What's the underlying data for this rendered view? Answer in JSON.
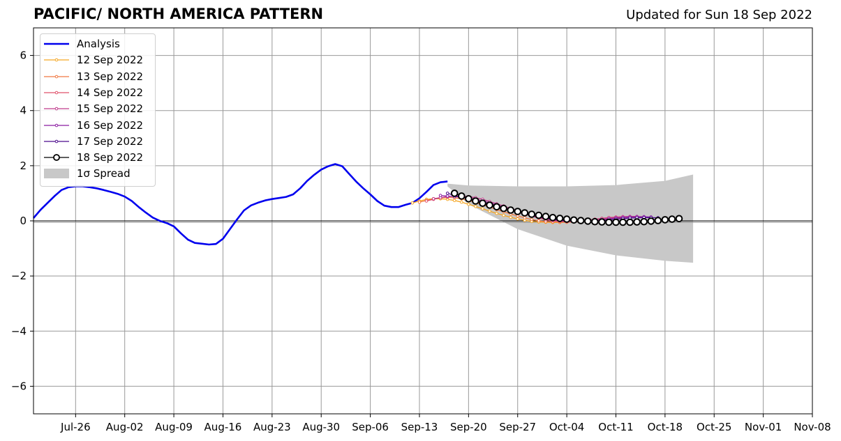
{
  "header": {
    "title": "PACIFIC/ NORTH AMERICA PATTERN",
    "updated": "Updated for Sun 18 Sep 2022"
  },
  "chart_data": {
    "type": "line",
    "title": "PACIFIC/ NORTH AMERICA PATTERN",
    "subtitle": "Updated for Sun 18 Sep 2022",
    "xlabel": "",
    "ylabel": "",
    "xlim": [
      "2022-07-20",
      "2022-11-08"
    ],
    "ylim": [
      -7,
      7
    ],
    "grid": true,
    "legend_position": "upper-left",
    "x_ticks": [
      "Jul-26",
      "Aug-02",
      "Aug-09",
      "Aug-16",
      "Aug-23",
      "Aug-30",
      "Sep-06",
      "Sep-13",
      "Sep-20",
      "Sep-27",
      "Oct-04",
      "Oct-11",
      "Oct-18",
      "Oct-25",
      "Nov-01",
      "Nov-08"
    ],
    "y_ticks": [
      "6",
      "4",
      "2",
      "0",
      "−2",
      "−4",
      "−6"
    ],
    "y_tick_values": [
      6,
      4,
      2,
      0,
      -2,
      -4,
      -6
    ],
    "zero_line": 0,
    "analysis": {
      "name": "Analysis",
      "color": "#0000ee",
      "x_start": "2022-07-20",
      "values": [
        0.1,
        0.4,
        0.65,
        0.9,
        1.12,
        1.22,
        1.25,
        1.25,
        1.22,
        1.18,
        1.12,
        1.05,
        0.98,
        0.88,
        0.72,
        0.5,
        0.3,
        0.12,
        0.0,
        -0.08,
        -0.2,
        -0.45,
        -0.68,
        -0.8,
        -0.83,
        -0.86,
        -0.84,
        -0.65,
        -0.3,
        0.05,
        0.38,
        0.56,
        0.66,
        0.74,
        0.79,
        0.83,
        0.87,
        0.96,
        1.18,
        1.45,
        1.67,
        1.86,
        1.98,
        2.06,
        1.98,
        1.7,
        1.42,
        1.18,
        0.96,
        0.72,
        0.55,
        0.5,
        0.5,
        0.58,
        0.65,
        0.82,
        1.05,
        1.3,
        1.4,
        1.43
      ]
    },
    "forecasts": [
      {
        "name": "12 Sep 2022",
        "color": "#f5a623",
        "start": "2022-09-12",
        "values": [
          0.65,
          0.72,
          0.78,
          0.8,
          0.8,
          0.78,
          0.74,
          0.68,
          0.6,
          0.52,
          0.44,
          0.35,
          0.27,
          0.2,
          0.13,
          0.07,
          0.02,
          -0.02,
          -0.04,
          -0.05,
          -0.06,
          -0.06,
          -0.05,
          -0.04,
          -0.02,
          0.0,
          0.03,
          0.06,
          0.08,
          0.1,
          0.1
        ]
      },
      {
        "name": "13 Sep 2022",
        "color": "#f07840",
        "start": "2022-09-13",
        "values": [
          0.68,
          0.74,
          0.8,
          0.84,
          0.85,
          0.84,
          0.8,
          0.74,
          0.66,
          0.58,
          0.5,
          0.41,
          0.33,
          0.25,
          0.18,
          0.11,
          0.05,
          0.0,
          -0.03,
          -0.04,
          -0.05,
          -0.05,
          -0.04,
          -0.02,
          0.01,
          0.04,
          0.07,
          0.1,
          0.12,
          0.13,
          0.13
        ]
      },
      {
        "name": "14 Sep 2022",
        "color": "#e0506a",
        "start": "2022-09-14",
        "values": [
          0.72,
          0.78,
          0.84,
          0.88,
          0.9,
          0.88,
          0.84,
          0.78,
          0.72,
          0.64,
          0.56,
          0.48,
          0.4,
          0.32,
          0.24,
          0.17,
          0.1,
          0.04,
          0.0,
          -0.02,
          -0.03,
          -0.02,
          0.0,
          0.03,
          0.06,
          0.09,
          0.12,
          0.14,
          0.15,
          0.15,
          0.14
        ]
      },
      {
        "name": "15 Sep 2022",
        "color": "#c03a8c",
        "start": "2022-09-15",
        "values": [
          0.8,
          0.84,
          0.88,
          0.9,
          0.9,
          0.88,
          0.84,
          0.78,
          0.7,
          0.62,
          0.54,
          0.45,
          0.37,
          0.29,
          0.21,
          0.14,
          0.08,
          0.03,
          0.0,
          -0.02,
          -0.02,
          -0.01,
          0.02,
          0.05,
          0.08,
          0.11,
          0.13,
          0.15,
          0.16,
          0.16,
          0.15
        ]
      },
      {
        "name": "16 Sep 2022",
        "color": "#8a1aa0",
        "start": "2022-09-16",
        "values": [
          0.92,
          0.9,
          0.88,
          0.86,
          0.83,
          0.78,
          0.72,
          0.65,
          0.57,
          0.49,
          0.41,
          0.33,
          0.26,
          0.19,
          0.13,
          0.08,
          0.04,
          0.01,
          -0.01,
          -0.02,
          -0.02,
          -0.01,
          0.01,
          0.04,
          0.07,
          0.1,
          0.12,
          0.14,
          0.15,
          0.15,
          0.14
        ]
      },
      {
        "name": "17 Sep 2022",
        "color": "#4b0a8c",
        "start": "2022-09-17",
        "values": [
          1.0,
          0.92,
          0.86,
          0.8,
          0.74,
          0.67,
          0.6,
          0.52,
          0.45,
          0.38,
          0.31,
          0.25,
          0.19,
          0.14,
          0.1,
          0.06,
          0.03,
          0.01,
          -0.01,
          -0.02,
          -0.02,
          -0.01,
          0.01,
          0.03,
          0.06,
          0.08,
          0.1,
          0.11,
          0.12,
          0.12,
          0.11
        ]
      },
      {
        "name": "18 Sep 2022",
        "color": "#000000",
        "start": "2022-09-18",
        "values": [
          1.0,
          0.9,
          0.8,
          0.72,
          0.64,
          0.57,
          0.51,
          0.45,
          0.39,
          0.34,
          0.29,
          0.24,
          0.2,
          0.16,
          0.12,
          0.09,
          0.06,
          0.03,
          0.01,
          -0.01,
          -0.03,
          -0.04,
          -0.05,
          -0.05,
          -0.05,
          -0.05,
          -0.04,
          -0.03,
          -0.01,
          0.01,
          0.04,
          0.06,
          0.08
        ]
      }
    ],
    "spread": {
      "name": "1σ Spread",
      "color": "#c8c8c8",
      "start": "2022-09-17",
      "center": 0.0,
      "upper": [
        1.4,
        1.25,
        1.35
      ],
      "note_shape": "widening"
    },
    "spread_band": {
      "x": [
        "2022-09-17",
        "2022-09-20",
        "2022-09-27",
        "2022-10-04",
        "2022-10-11",
        "2022-10-18",
        "2022-10-22"
      ],
      "upper": [
        1.35,
        1.28,
        1.25,
        1.25,
        1.3,
        1.45,
        1.68
      ],
      "lower": [
        1.25,
        0.6,
        -0.3,
        -0.9,
        -1.25,
        -1.45,
        -1.52
      ]
    }
  },
  "legend": {
    "analysis_label": "Analysis",
    "spread_label": "1σ Spread",
    "spread_label_html": "1σ Spread"
  }
}
